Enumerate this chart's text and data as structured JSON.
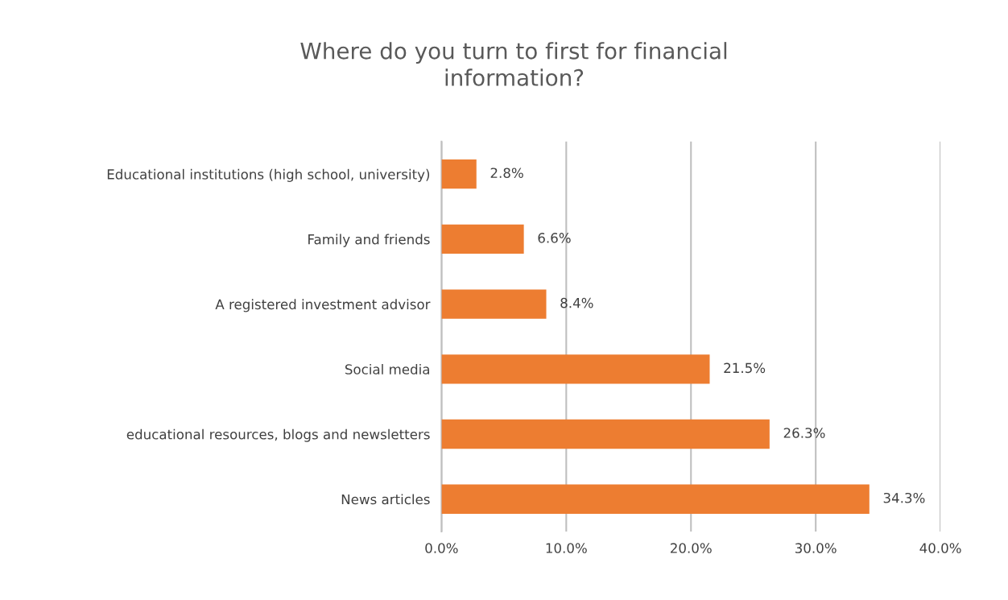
{
  "chart_data": {
    "type": "bar",
    "orientation": "horizontal",
    "title": "Where do you turn to first for financial\ninformation?",
    "categories": [
      "Educational institutions (high school, university)",
      "Family and friends",
      "A registered investment advisor",
      "Social media",
      "educational resources, blogs and newsletters",
      "News articles"
    ],
    "values": [
      2.8,
      6.6,
      8.4,
      21.5,
      26.3,
      34.3
    ],
    "value_labels": [
      "2.8%",
      "6.6%",
      "8.4%",
      "21.5%",
      "26.3%",
      "34.3%"
    ],
    "color": "#ed7d31",
    "xlim": [
      0,
      40
    ],
    "xticks": [
      {
        "value": 0,
        "label": "0.0%"
      },
      {
        "value": 10,
        "label": "10.0%"
      },
      {
        "value": 20,
        "label": "20.0%"
      },
      {
        "value": 30,
        "label": "30.0%"
      },
      {
        "value": 40,
        "label": "40.0%"
      }
    ],
    "grid": "x"
  }
}
